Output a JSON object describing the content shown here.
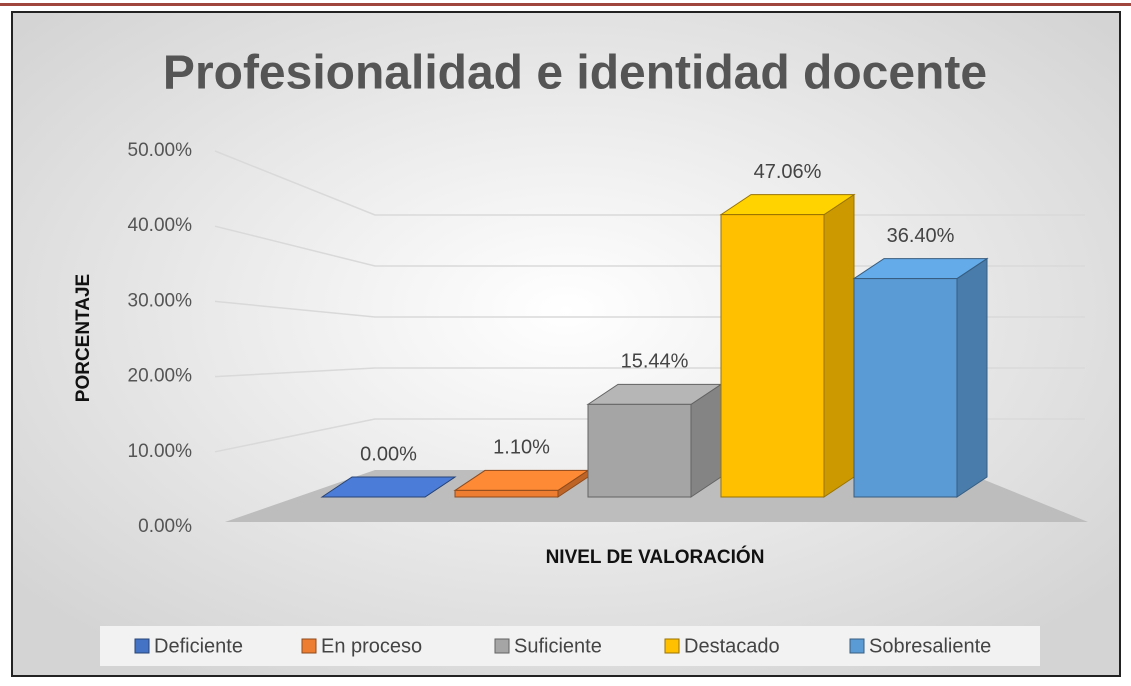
{
  "chart_data": {
    "type": "bar",
    "title": "Profesionalidad e identidad docente",
    "ylabel": "PORCENTAJE",
    "xlabel": "NIVEL DE VALORACIÓN",
    "ylim": [
      0,
      50
    ],
    "yticks": [
      {
        "value": 0,
        "label": "0.00%"
      },
      {
        "value": 10,
        "label": "10.00%"
      },
      {
        "value": 20,
        "label": "20.00%"
      },
      {
        "value": 30,
        "label": "30.00%"
      },
      {
        "value": 40,
        "label": "40.00%"
      },
      {
        "value": 50,
        "label": "50.00%"
      }
    ],
    "grid": true,
    "legend": "bottom",
    "series": [
      {
        "name": "Deficiente",
        "color": "#4472c4",
        "values": [
          0
        ],
        "value_labels": [
          "0.00%"
        ]
      },
      {
        "name": "En proceso",
        "color": "#ed7d31",
        "values": [
          1.1
        ],
        "value_labels": [
          "1.10%"
        ]
      },
      {
        "name": "Suficiente",
        "color": "#a5a5a5",
        "values": [
          15.44
        ],
        "value_labels": [
          "15.44%"
        ]
      },
      {
        "name": "Destacado",
        "color": "#ffc000",
        "values": [
          47.06
        ],
        "value_labels": [
          "47.06%"
        ]
      },
      {
        "name": "Sobresaliente",
        "color": "#5b9bd5",
        "values": [
          36.4
        ],
        "value_labels": [
          "36.40%"
        ]
      }
    ]
  }
}
